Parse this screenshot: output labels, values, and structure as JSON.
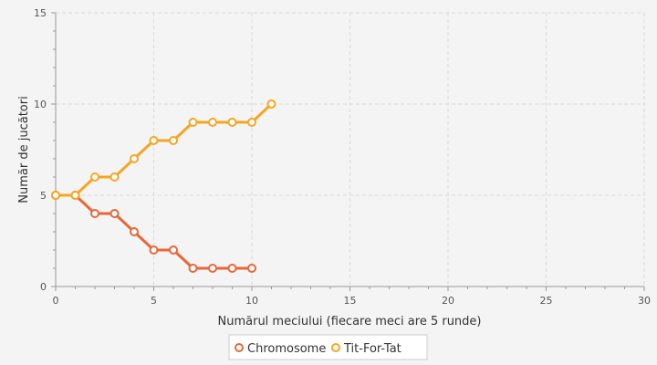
{
  "chart_data": {
    "type": "line",
    "xlabel": "Numărul meciului (fiecare meci are 5 runde)",
    "ylabel": "Număr de jucători",
    "xlim": [
      0,
      30
    ],
    "ylim": [
      0,
      15
    ],
    "x_ticks": [
      0,
      5,
      10,
      15,
      20,
      25,
      30
    ],
    "y_ticks": [
      0,
      5,
      10,
      15
    ],
    "grid": true,
    "legend_position": "bottom-center",
    "series": [
      {
        "name": "Chromosome",
        "color": "#e8673a",
        "x": [
          0,
          1,
          2,
          3,
          4,
          5,
          6,
          7,
          8,
          9,
          10
        ],
        "values": [
          5,
          5,
          4,
          4,
          3,
          2,
          2,
          1,
          1,
          1,
          1
        ]
      },
      {
        "name": "Tit-For-Tat",
        "color": "#f5a623",
        "x": [
          0,
          1,
          2,
          3,
          4,
          5,
          6,
          7,
          8,
          9,
          10,
          11
        ],
        "values": [
          5,
          5,
          6,
          6,
          7,
          8,
          8,
          9,
          9,
          9,
          9,
          10
        ]
      }
    ]
  }
}
